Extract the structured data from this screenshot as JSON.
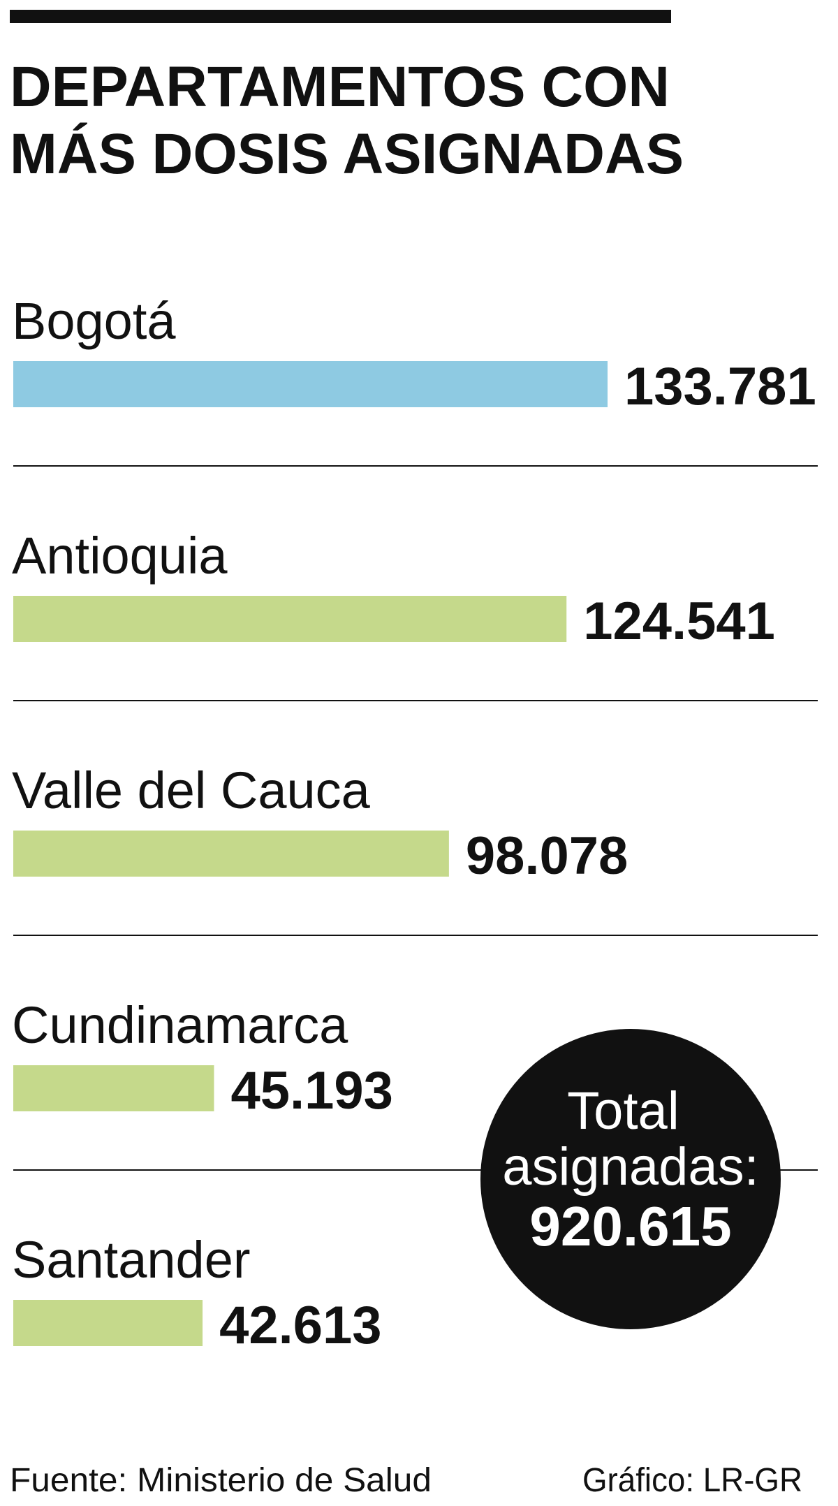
{
  "chart_data": {
    "type": "bar",
    "title_lines": [
      "DEPARTAMENTOS CON",
      "MÁS DOSIS ASIGNADAS"
    ],
    "categories": [
      "Bogotá",
      "Antioquia",
      "Valle del Cauca",
      "Cundinamarca",
      "Santander"
    ],
    "values": [
      133781,
      124541,
      98078,
      45193,
      42613
    ],
    "value_labels": [
      "133.781",
      "124.541",
      "98.078",
      "45.193",
      "42.613"
    ],
    "colors": [
      "#8ecae2",
      "#c5d98b",
      "#c5d98b",
      "#c5d98b",
      "#c5d98b"
    ],
    "total_label": "Total asignadas:",
    "total": {
      "value": 920615,
      "label": "920.615"
    },
    "source": "Fuente: Ministerio de Salud",
    "credit": "Gráfico: LR-GR"
  }
}
